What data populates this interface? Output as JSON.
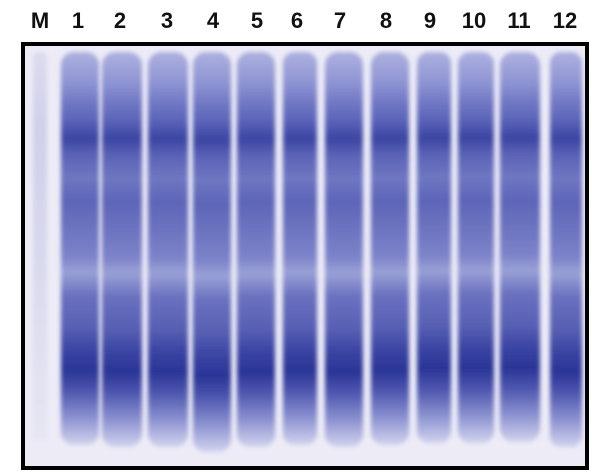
{
  "lanes": [
    "M",
    "1",
    "2",
    "3",
    "4",
    "5",
    "6",
    "7",
    "8",
    "9",
    "10",
    "11",
    "12"
  ]
}
